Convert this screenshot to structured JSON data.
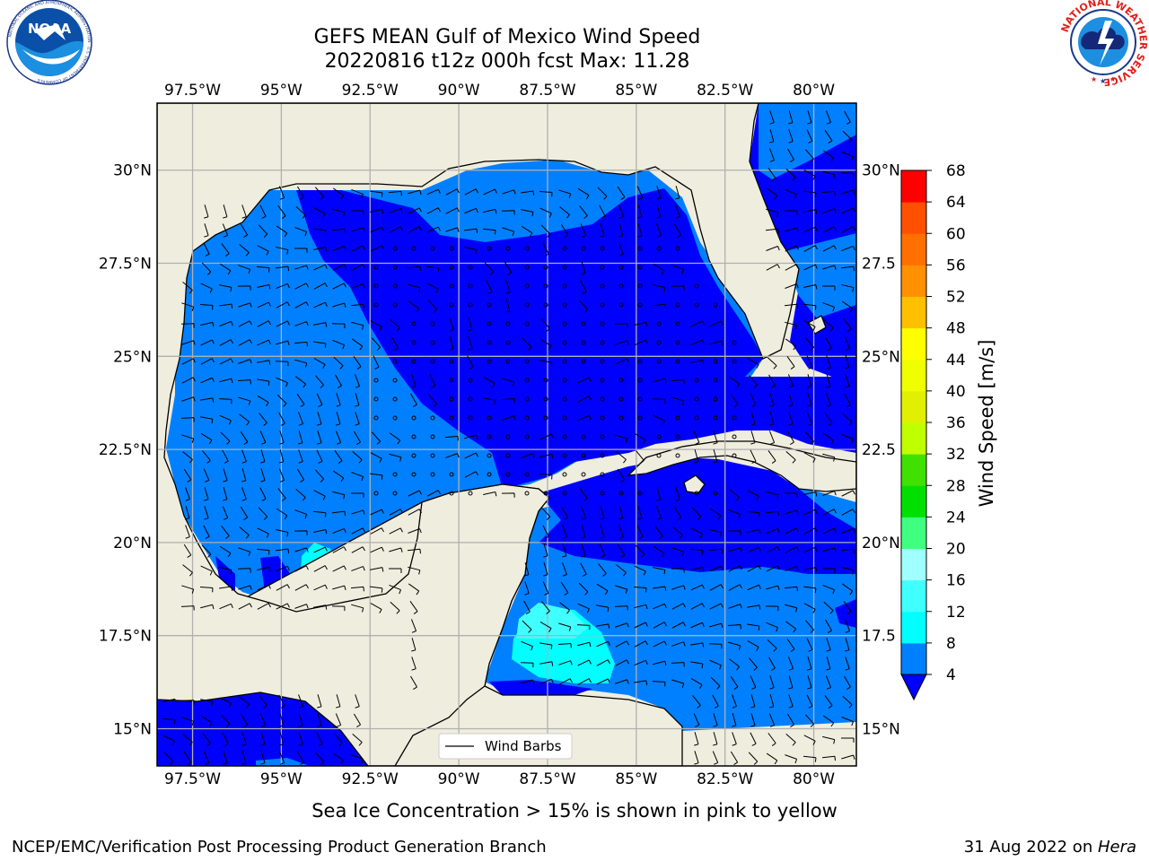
{
  "title": {
    "line1": "GEFS MEAN Gulf of Mexico Wind Speed",
    "line2": "20220816 t12z 000h fcst   Max: 11.28"
  },
  "map": {
    "lon_range": [
      -98.5,
      -78.8
    ],
    "lat_range": [
      14.0,
      31.8
    ],
    "lon_ticks": [
      {
        "lon": -97.5,
        "label": "97.5°W"
      },
      {
        "lon": -95.0,
        "label": "95°W"
      },
      {
        "lon": -92.5,
        "label": "92.5°W"
      },
      {
        "lon": -90.0,
        "label": "90°W"
      },
      {
        "lon": -87.5,
        "label": "87.5°W"
      },
      {
        "lon": -85.0,
        "label": "85°W"
      },
      {
        "lon": -82.5,
        "label": "82.5°W"
      },
      {
        "lon": -80.0,
        "label": "80°W"
      }
    ],
    "lat_ticks": [
      {
        "lat": 30.0,
        "label": "30°N",
        "right_label": "30°N"
      },
      {
        "lat": 27.5,
        "label": "27.5°N",
        "right_label": "27.5"
      },
      {
        "lat": 25.0,
        "label": "25°N",
        "right_label": "25°N"
      },
      {
        "lat": 22.5,
        "label": "22.5°N",
        "right_label": "22.5"
      },
      {
        "lat": 20.0,
        "label": "20°N",
        "right_label": "20°N"
      },
      {
        "lat": 17.5,
        "label": "17.5°N",
        "right_label": "17.5"
      },
      {
        "lat": 15.0,
        "label": "15°N",
        "right_label": "15°N"
      }
    ],
    "land_color": "#efedde",
    "grid": true,
    "legend": {
      "label": "Wind Barbs",
      "placement": "bottom-center"
    }
  },
  "colorbar": {
    "label": "Wind Speed [m/s]",
    "ticks": [
      "4",
      "8",
      "12",
      "16",
      "20",
      "24",
      "28",
      "32",
      "36",
      "40",
      "44",
      "48",
      "52",
      "56",
      "60",
      "64",
      "68"
    ],
    "levels": [
      {
        "from": 4,
        "to": 8,
        "color": "#0080ff"
      },
      {
        "from": 8,
        "to": 12,
        "color": "#00ffff"
      },
      {
        "from": 12,
        "to": 16,
        "color": "#40ffff"
      },
      {
        "from": 16,
        "to": 20,
        "color": "#a0ffff"
      },
      {
        "from": 20,
        "to": 24,
        "color": "#40ff80"
      },
      {
        "from": 24,
        "to": 28,
        "color": "#00e000"
      },
      {
        "from": 28,
        "to": 32,
        "color": "#40e000"
      },
      {
        "from": 32,
        "to": 36,
        "color": "#c0ff00"
      },
      {
        "from": 36,
        "to": 40,
        "color": "#e0f000"
      },
      {
        "from": 40,
        "to": 44,
        "color": "#f0ff00"
      },
      {
        "from": 44,
        "to": 48,
        "color": "#ffff00"
      },
      {
        "from": 48,
        "to": 52,
        "color": "#ffc000"
      },
      {
        "from": 52,
        "to": 56,
        "color": "#ff9000"
      },
      {
        "from": 56,
        "to": 60,
        "color": "#ff7000"
      },
      {
        "from": 60,
        "to": 64,
        "color": "#ff5000"
      },
      {
        "from": 64,
        "to": 68,
        "color": "#ff0000"
      }
    ],
    "under_color": "#0000ff"
  },
  "note": "Sea Ice Concentration > 15% is shown in pink to yellow",
  "footer": {
    "left": "NCEP/EMC/Verification Post Processing Product Generation Branch",
    "right_prefix": "31 Aug 2022 on ",
    "right_italic": "Hera"
  },
  "logos": {
    "noaa": {
      "text": "NOAA",
      "ring": "NATIONAL OCEANIC AND ATMOSPHERIC ADMINISTRATION · U.S. DEPARTMENT OF COMMERCE"
    },
    "nws": {
      "ring": "NATIONAL WEATHER SERVICE"
    }
  }
}
